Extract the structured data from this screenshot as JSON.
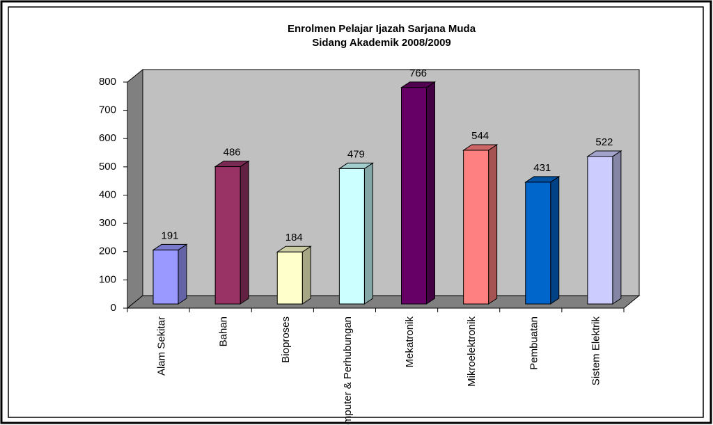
{
  "chart_data": {
    "type": "bar3d",
    "title": "Enrolmen Pelajar Ijazah Sarjana Muda",
    "subtitle": "Sidang Akademik 2008/2009",
    "categories": [
      "Alam Sekitar",
      "Bahan",
      "Bioproses",
      "Komputer & Perhubungan",
      "Mekatronik",
      "Mikroelektronik",
      "Pembuatan",
      "Sistem Elektrik"
    ],
    "values": [
      191,
      486,
      184,
      479,
      766,
      544,
      431,
      522
    ],
    "colors": [
      "#9999ff",
      "#993366",
      "#ffffcc",
      "#ccffff",
      "#660066",
      "#ff8080",
      "#0066cc",
      "#ccccff"
    ],
    "ylim": [
      0,
      800
    ],
    "yticks": [
      0,
      100,
      200,
      300,
      400,
      500,
      600,
      700,
      800
    ]
  }
}
